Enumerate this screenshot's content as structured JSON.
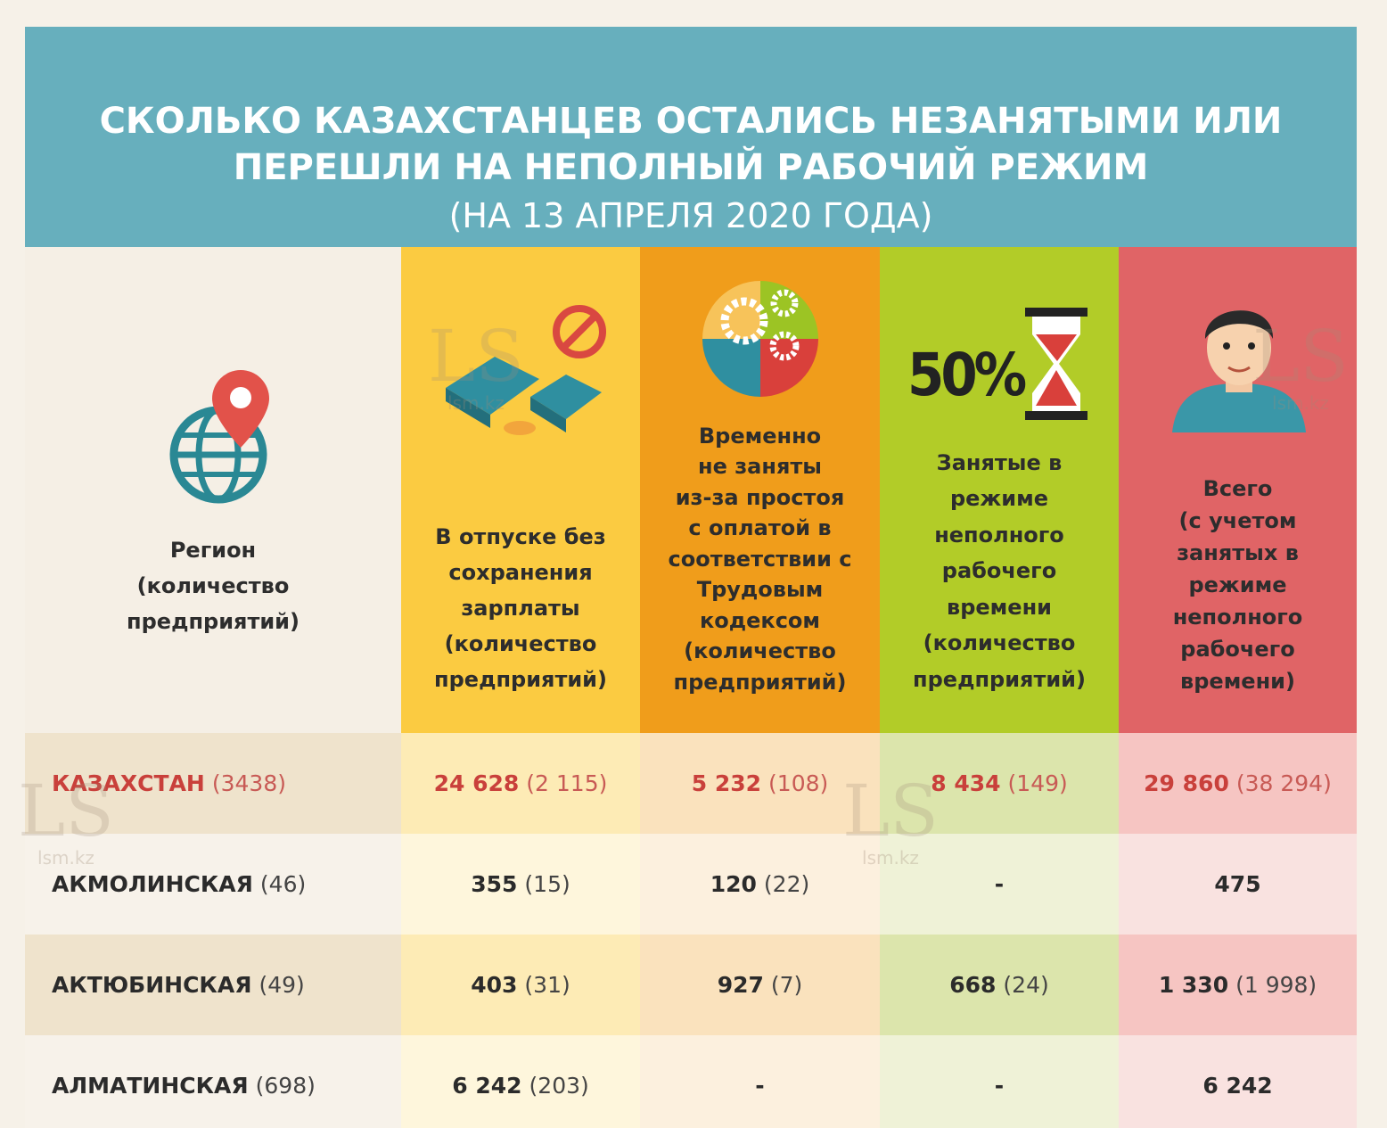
{
  "header": {
    "title": [
      "СКОЛЬКО КАЗАХСТАНЦЕВ ОСТАЛИСЬ НЕЗАНЯТЫМИ ИЛИ",
      "ПЕРЕШЛИ НА НЕПОЛНЫЙ РАБОЧИЙ РЕЖИМ"
    ],
    "subtitle": "(НА 13 АПРЕЛЯ 2020 ГОДА)"
  },
  "table": {
    "columns": [
      {
        "lines": [
          "Регион",
          "(количество",
          "предприятий)"
        ]
      },
      {
        "lines": [
          "В отпуске без",
          "сохранения",
          "зарплаты",
          "(количество",
          "предприятий)"
        ]
      },
      {
        "lines": [
          "Временно",
          "не заняты",
          "из-за простоя",
          "с оплатой в",
          "соответствии с",
          "Трудовым",
          "кодексом",
          "(количество",
          "предприятий)"
        ]
      },
      {
        "icon_label": "50%",
        "lines": [
          "Занятые в",
          "режиме",
          "неполного",
          "рабочего",
          "времени",
          "(количество",
          "предприятий)"
        ]
      },
      {
        "lines": [
          "Всего",
          "(с учетом",
          "занятых в",
          "режиме",
          "неполного",
          "рабочего",
          "времени)"
        ]
      }
    ],
    "rows": [
      [
        [
          "КАЗАХСТАН",
          "(3438)"
        ],
        [
          "24 628",
          "(2 115)"
        ],
        [
          "5 232",
          "(108)"
        ],
        [
          "8 434",
          "(149)"
        ],
        [
          "29 860",
          "(38 294)"
        ]
      ],
      [
        [
          "АКМОЛИНСКАЯ",
          "(46)"
        ],
        [
          "355",
          "(15)"
        ],
        [
          "120",
          "(22)"
        ],
        [
          "-"
        ],
        [
          "475"
        ]
      ],
      [
        [
          "АКТЮБИНСКАЯ",
          "(49)"
        ],
        [
          "403",
          "(31)"
        ],
        [
          "927",
          "(7)"
        ],
        [
          "668",
          "(24)"
        ],
        [
          "1 330",
          "(1 998)"
        ]
      ],
      [
        [
          "АЛМАТИНСКАЯ",
          "(698)"
        ],
        [
          "6 242",
          "(203)"
        ],
        [
          "-"
        ],
        [
          "-"
        ],
        [
          "6 242"
        ]
      ]
    ]
  },
  "watermark": {
    "logo": "LS",
    "site": "lsm.kz"
  }
}
